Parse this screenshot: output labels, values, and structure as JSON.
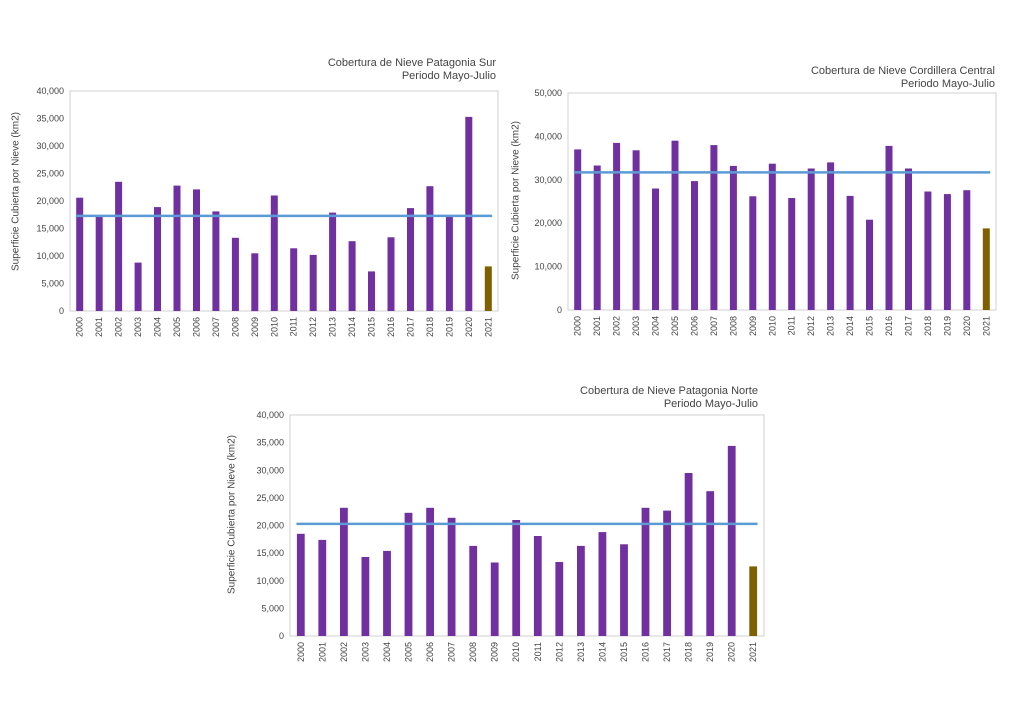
{
  "chart_data": [
    {
      "type": "bar",
      "title": "Cobertura de Nieve Patagonia Sur",
      "subtitle": "Periodo Mayo-Julio",
      "ylabel": "Superficie Cubierta por Nieve (km2)",
      "xlabel": "",
      "ylim": [
        0,
        40000
      ],
      "yticks": [
        "0",
        "5,000",
        "10,000",
        "15,000",
        "20,000",
        "25,000",
        "30,000",
        "35,000",
        "40,000"
      ],
      "categories": [
        "2000",
        "2001",
        "2002",
        "2003",
        "2004",
        "2005",
        "2006",
        "2007",
        "2008",
        "2009",
        "2010",
        "2011",
        "2012",
        "2013",
        "2014",
        "2015",
        "2016",
        "2017",
        "2018",
        "2019",
        "2020",
        "2021"
      ],
      "values": [
        20600,
        17100,
        23500,
        8800,
        18900,
        22800,
        22100,
        18100,
        13300,
        10500,
        21000,
        11400,
        10200,
        17900,
        12700,
        7200,
        13400,
        18700,
        22700,
        17100,
        35300,
        8100
      ],
      "average": 17300,
      "grid": false,
      "colors": {
        "bar": "#7030a0",
        "current": "#7f6000",
        "average": "#5b9bd5"
      }
    },
    {
      "type": "bar",
      "title": "Cobertura de Nieve Cordillera Central",
      "subtitle": "Periodo Mayo-Julio",
      "ylabel": "Superficie Cubierta por Nieve (km2)",
      "xlabel": "",
      "ylim": [
        0,
        50000
      ],
      "yticks": [
        "0",
        "10,000",
        "20,000",
        "30,000",
        "40,000",
        "50,000"
      ],
      "categories": [
        "2000",
        "2001",
        "2002",
        "2003",
        "2004",
        "2005",
        "2006",
        "2007",
        "2008",
        "2009",
        "2010",
        "2011",
        "2012",
        "2013",
        "2014",
        "2015",
        "2016",
        "2017",
        "2018",
        "2019",
        "2020",
        "2021"
      ],
      "values": [
        37000,
        33300,
        38500,
        36800,
        28000,
        39000,
        29700,
        38000,
        33200,
        26200,
        33700,
        25800,
        32600,
        34000,
        26300,
        20800,
        37800,
        32600,
        27300,
        26700,
        27600,
        18800
      ],
      "average": 31700,
      "grid": false,
      "colors": {
        "bar": "#7030a0",
        "current": "#7f6000",
        "average": "#5b9bd5"
      }
    },
    {
      "type": "bar",
      "title": "Cobertura de Nieve Patagonia Norte",
      "subtitle": "Periodo Mayo-Julio",
      "ylabel": "Superficie Cubierta por Nieve (km2)",
      "xlabel": "",
      "ylim": [
        0,
        40000
      ],
      "yticks": [
        "0",
        "5,000",
        "10,000",
        "15,000",
        "20,000",
        "25,000",
        "30,000",
        "35,000",
        "40,000"
      ],
      "categories": [
        "2000",
        "2001",
        "2002",
        "2003",
        "2004",
        "2005",
        "2006",
        "2007",
        "2008",
        "2009",
        "2010",
        "2011",
        "2012",
        "2013",
        "2014",
        "2015",
        "2016",
        "2017",
        "2018",
        "2019",
        "2020",
        "2021"
      ],
      "values": [
        18500,
        17400,
        23200,
        14300,
        15400,
        22300,
        23200,
        21400,
        16300,
        13300,
        21000,
        18100,
        13400,
        16300,
        18800,
        16600,
        23200,
        22700,
        29500,
        26200,
        34400,
        12600
      ],
      "average": 20300,
      "grid": false,
      "colors": {
        "bar": "#7030a0",
        "current": "#7f6000",
        "average": "#5b9bd5"
      }
    }
  ]
}
